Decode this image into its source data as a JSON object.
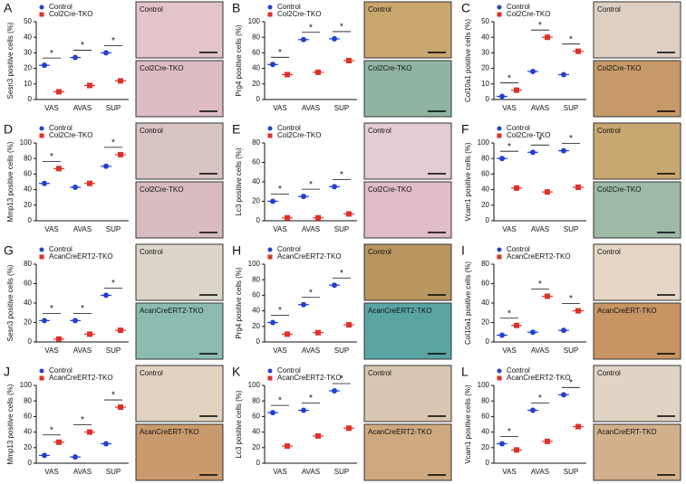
{
  "chart_data": [
    {
      "type": "dot",
      "panel": "A",
      "ylabel": "Sesn3 positive cells (%)",
      "categories": [
        "VAS",
        "AVAS",
        "SUP"
      ],
      "series": [
        {
          "name": "Control",
          "color": "#2440d0",
          "marker": "circle",
          "values": [
            22,
            27,
            30
          ]
        },
        {
          "name": "Col2Cre-TKO",
          "color": "#e0302a",
          "marker": "square",
          "values": [
            5,
            9,
            12
          ]
        }
      ],
      "ylim": [
        0,
        50
      ],
      "yticks": [
        0,
        10,
        20,
        30,
        40,
        50
      ],
      "significance": [
        "*",
        "*",
        "*"
      ],
      "image_labels": [
        "Control",
        "Col2Cre-TKO"
      ],
      "image_colors": [
        "#e2c4ca",
        "#ddbcc4"
      ]
    },
    {
      "type": "dot",
      "panel": "B",
      "ylabel": "Prg4 positive cells (%)",
      "categories": [
        "VAS",
        "AVAS",
        "SUP"
      ],
      "series": [
        {
          "name": "Control",
          "color": "#2440d0",
          "marker": "circle",
          "values": [
            45,
            77,
            78
          ]
        },
        {
          "name": "Col2Cre-TKO",
          "color": "#e0302a",
          "marker": "square",
          "values": [
            32,
            35,
            50
          ]
        }
      ],
      "ylim": [
        0,
        100
      ],
      "yticks": [
        0,
        20,
        40,
        60,
        80,
        100
      ],
      "significance": [
        "*",
        "*",
        "*"
      ],
      "image_labels": [
        "Control",
        "Col2Cre-TKO"
      ],
      "image_colors": [
        "#c9a66e",
        "#8fb4a2"
      ]
    },
    {
      "type": "dot",
      "panel": "C",
      "ylabel": "Col10a1 positive cells (%)",
      "categories": [
        "VAS",
        "AVAS",
        "SUP"
      ],
      "series": [
        {
          "name": "Control",
          "color": "#2440d0",
          "marker": "circle",
          "values": [
            2,
            18,
            16
          ]
        },
        {
          "name": "Col2Cre-TKO",
          "color": "#e0302a",
          "marker": "square",
          "values": [
            6,
            40,
            31
          ]
        }
      ],
      "ylim": [
        0,
        50
      ],
      "yticks": [
        0,
        10,
        20,
        30,
        40,
        50
      ],
      "significance": [
        "*",
        "*",
        "*"
      ],
      "image_labels": [
        "Control",
        "Col2Cre-TKO"
      ],
      "image_colors": [
        "#ddd0c2",
        "#c69a68"
      ]
    },
    {
      "type": "dot",
      "panel": "D",
      "ylabel": "Mmp13 positive cells (%)",
      "categories": [
        "VAS",
        "AVAS",
        "SUP"
      ],
      "series": [
        {
          "name": "Control",
          "color": "#2440d0",
          "marker": "circle",
          "values": [
            48,
            43,
            70
          ]
        },
        {
          "name": "Col2Cre-TKO",
          "color": "#e0302a",
          "marker": "square",
          "values": [
            67,
            48,
            85
          ]
        }
      ],
      "ylim": [
        0,
        100
      ],
      "yticks": [
        0,
        20,
        40,
        60,
        80,
        100
      ],
      "significance": [
        "*",
        "*"
      ],
      "image_labels": [
        "Control",
        "Col2Cre-TKO"
      ],
      "image_colors": [
        "#d9c4c4",
        "#d8bcc0"
      ]
    },
    {
      "type": "dot",
      "panel": "E",
      "ylabel": "Lc3 positive cells (%)",
      "categories": [
        "VAS",
        "AVAS",
        "SUP"
      ],
      "series": [
        {
          "name": "Control",
          "color": "#2440d0",
          "marker": "circle",
          "values": [
            20,
            25,
            35
          ]
        },
        {
          "name": "Col2Cre-TKO",
          "color": "#e0302a",
          "marker": "square",
          "values": [
            3,
            3,
            7
          ]
        }
      ],
      "ylim": [
        0,
        80
      ],
      "yticks": [
        0,
        20,
        40,
        60,
        80
      ],
      "significance": [
        "*",
        "*",
        "*"
      ],
      "image_labels": [
        "Control",
        "Col2Cre-TKO"
      ],
      "image_colors": [
        "#e4ccd2",
        "#e0bcc6"
      ]
    },
    {
      "type": "dot",
      "panel": "F",
      "ylabel": "Vcam1 positive cells (%)",
      "categories": [
        "VAS",
        "AVAS",
        "SUP"
      ],
      "series": [
        {
          "name": "Control",
          "color": "#2440d0",
          "marker": "circle",
          "values": [
            80,
            88,
            90
          ]
        },
        {
          "name": "Col2Cre-TKO",
          "color": "#e0302a",
          "marker": "square",
          "values": [
            42,
            37,
            43
          ]
        }
      ],
      "ylim": [
        0,
        100
      ],
      "yticks": [
        0,
        20,
        40,
        60,
        80,
        100
      ],
      "significance": [
        "*",
        "*",
        "*"
      ],
      "image_labels": [
        "Control",
        "Col2Cre-TKO"
      ],
      "image_colors": [
        "#c8a870",
        "#9cbaa6"
      ]
    },
    {
      "type": "dot",
      "panel": "G",
      "ylabel": "Sesn3 positive cells (%)",
      "categories": [
        "VAS",
        "AVAS",
        "SUP"
      ],
      "series": [
        {
          "name": "Control",
          "color": "#2440d0",
          "marker": "circle",
          "values": [
            22,
            22,
            48
          ]
        },
        {
          "name": "AcanCreERT2-TKO",
          "color": "#e0302a",
          "marker": "square",
          "values": [
            3,
            8,
            12
          ]
        }
      ],
      "ylim": [
        0,
        80
      ],
      "yticks": [
        0,
        20,
        40,
        60,
        80
      ],
      "significance": [
        "*",
        "*",
        "*"
      ],
      "image_labels": [
        "Control",
        "AcanCreERT2-TKO"
      ],
      "image_colors": [
        "#dcd6ca",
        "#8cbcb0"
      ]
    },
    {
      "type": "dot",
      "panel": "H",
      "ylabel": "Prg4 positive cells (%)",
      "categories": [
        "VAS",
        "AVAS",
        "SUP"
      ],
      "series": [
        {
          "name": "Control",
          "color": "#2440d0",
          "marker": "circle",
          "values": [
            25,
            48,
            73
          ]
        },
        {
          "name": "AcanCreERT2-TKO",
          "color": "#e0302a",
          "marker": "square",
          "values": [
            10,
            12,
            22
          ]
        }
      ],
      "ylim": [
        0,
        100
      ],
      "yticks": [
        0,
        20,
        40,
        60,
        80,
        100
      ],
      "significance": [
        "*",
        "*",
        "*"
      ],
      "image_labels": [
        "Control",
        "AcanCreERT2-TKO"
      ],
      "image_colors": [
        "#b99660",
        "#5aa4a4"
      ]
    },
    {
      "type": "dot",
      "panel": "I",
      "ylabel": "Col10a1 positive cells (%)",
      "categories": [
        "VAS",
        "AVAS",
        "SUP"
      ],
      "series": [
        {
          "name": "Control",
          "color": "#2440d0",
          "marker": "circle",
          "values": [
            7,
            10,
            12
          ]
        },
        {
          "name": "AcanCreERT2-TKO",
          "color": "#e0302a",
          "marker": "square",
          "values": [
            17,
            47,
            32
          ]
        }
      ],
      "ylim": [
        0,
        80
      ],
      "yticks": [
        0,
        20,
        40,
        60,
        80
      ],
      "significance": [
        "*",
        "*",
        "*"
      ],
      "image_labels": [
        "Control",
        "AcanCreERT-TKO"
      ],
      "image_colors": [
        "#e6d6c6",
        "#c89464"
      ]
    },
    {
      "type": "dot",
      "panel": "J",
      "ylabel": "Mmp13 positive cells (%)",
      "categories": [
        "VAS",
        "AVAS",
        "SUP"
      ],
      "series": [
        {
          "name": "Control",
          "color": "#2440d0",
          "marker": "circle",
          "values": [
            10,
            8,
            25
          ]
        },
        {
          "name": "AcanCreERT2-TKO",
          "color": "#e0302a",
          "marker": "square",
          "values": [
            27,
            40,
            72
          ]
        }
      ],
      "ylim": [
        0,
        100
      ],
      "yticks": [
        0,
        20,
        40,
        60,
        80,
        100
      ],
      "significance": [
        "*",
        "*",
        "*"
      ],
      "image_labels": [
        "Control",
        "AcanCreERT-TKO"
      ],
      "image_colors": [
        "#e2d2c0",
        "#c89a6c"
      ]
    },
    {
      "type": "dot",
      "panel": "K",
      "ylabel": "Lc3 positive cells (%)",
      "categories": [
        "VAS",
        "AVAS",
        "SUP"
      ],
      "series": [
        {
          "name": "Control",
          "color": "#2440d0",
          "marker": "circle",
          "values": [
            65,
            68,
            93
          ]
        },
        {
          "name": "AcanCreERT2-TKO",
          "color": "#e0302a",
          "marker": "square",
          "values": [
            22,
            35,
            45
          ]
        }
      ],
      "ylim": [
        0,
        100
      ],
      "yticks": [
        0,
        20,
        40,
        60,
        80,
        100
      ],
      "significance": [
        "*",
        "*",
        "*"
      ],
      "image_labels": [
        "Control",
        "AcanCreERT2-TKO"
      ],
      "image_colors": [
        "#d8c6b0",
        "#cfa880"
      ]
    },
    {
      "type": "dot",
      "panel": "L",
      "ylabel": "Vcam1 positive cells (%)",
      "categories": [
        "VAS",
        "AVAS",
        "SUP"
      ],
      "series": [
        {
          "name": "Control",
          "color": "#2440d0",
          "marker": "circle",
          "values": [
            25,
            68,
            88
          ]
        },
        {
          "name": "AcanCreERT2-TKO",
          "color": "#e0302a",
          "marker": "square",
          "values": [
            17,
            28,
            47
          ]
        }
      ],
      "ylim": [
        0,
        100
      ],
      "yticks": [
        0,
        20,
        40,
        60,
        80,
        100
      ],
      "significance": [
        "*",
        "*",
        "*"
      ],
      "image_labels": [
        "Control",
        "AcanCreERT-TKO"
      ],
      "image_colors": [
        "#e0d4c4",
        "#d2b08c"
      ]
    }
  ]
}
